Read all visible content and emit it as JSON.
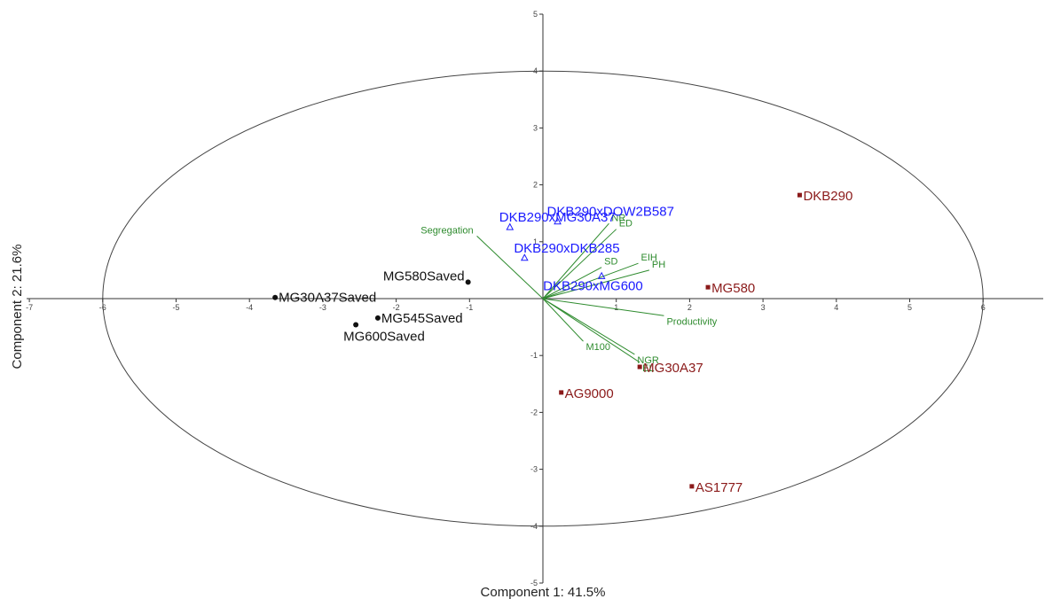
{
  "chart_data": {
    "type": "scatter",
    "subtype": "pca-biplot",
    "xlabel": "Component 1: 41.5%",
    "ylabel": "Component 2: 21.6%",
    "xlim": [
      -7,
      6.5
    ],
    "ylim": [
      -5,
      5
    ],
    "x_ticks": [
      -7,
      -6,
      -5,
      -4,
      -3,
      -2,
      -1,
      1,
      2,
      3,
      4,
      5,
      6
    ],
    "y_ticks": [
      -5,
      -4,
      -3,
      -2,
      -1,
      1,
      2,
      3,
      4,
      5
    ],
    "ellipse": {
      "cx": 0,
      "cy": 0,
      "rx": 6,
      "ry": 4
    },
    "colors": {
      "axis": "#333333",
      "ellipse": "#444444",
      "saved": "#111111",
      "hybrid": "#1a1aff",
      "commercial": "#8b1a1a",
      "variables": "#2e8b2e"
    },
    "groups": [
      {
        "name": "saved",
        "marker": "circle",
        "color_key": "saved",
        "points": [
          {
            "label": "MG580Saved",
            "x": -1.02,
            "y": 0.29
          },
          {
            "label": "MG30A37Saved",
            "x": -3.65,
            "y": 0.02
          },
          {
            "label": "MG545Saved",
            "x": -2.25,
            "y": -0.34
          },
          {
            "label": "MG600Saved",
            "x": -2.55,
            "y": -0.46
          }
        ]
      },
      {
        "name": "hybrid",
        "marker": "triangle",
        "color_key": "hybrid",
        "points": [
          {
            "label": "DKB290xDOW2B587",
            "x": 0.2,
            "y": 1.36
          },
          {
            "label": "DKB290xMG30A37",
            "x": -0.45,
            "y": 1.26
          },
          {
            "label": "DKB290xDKB285",
            "x": -0.25,
            "y": 0.72
          },
          {
            "label": "DKB290xMG600",
            "x": 0.8,
            "y": 0.4
          }
        ]
      },
      {
        "name": "commercial",
        "marker": "square",
        "color_key": "commercial",
        "points": [
          {
            "label": "DKB290",
            "x": 3.5,
            "y": 1.82
          },
          {
            "label": "MG580",
            "x": 2.25,
            "y": 0.2
          },
          {
            "label": "MG30A37",
            "x": 1.32,
            "y": -1.2
          },
          {
            "label": "AG9000",
            "x": 0.25,
            "y": -1.65
          },
          {
            "label": "AS1777",
            "x": 2.03,
            "y": -3.3
          }
        ]
      }
    ],
    "variables": [
      {
        "label": "Segregation",
        "x": -0.9,
        "y": 1.1
      },
      {
        "label": "NR",
        "x": 0.9,
        "y": 1.32
      },
      {
        "label": "ED",
        "x": 1.0,
        "y": 1.22
      },
      {
        "label": "EIH",
        "x": 1.3,
        "y": 0.62
      },
      {
        "label": "PH",
        "x": 1.45,
        "y": 0.5
      },
      {
        "label": "SD",
        "x": 0.8,
        "y": 0.55
      },
      {
        "label": "Productivity",
        "x": 1.65,
        "y": -0.3
      },
      {
        "label": "M100",
        "x": 0.55,
        "y": -0.75
      },
      {
        "label": "NGR",
        "x": 1.25,
        "y": -0.98
      },
      {
        "label": "EL",
        "x": 1.32,
        "y": -1.12
      }
    ]
  }
}
